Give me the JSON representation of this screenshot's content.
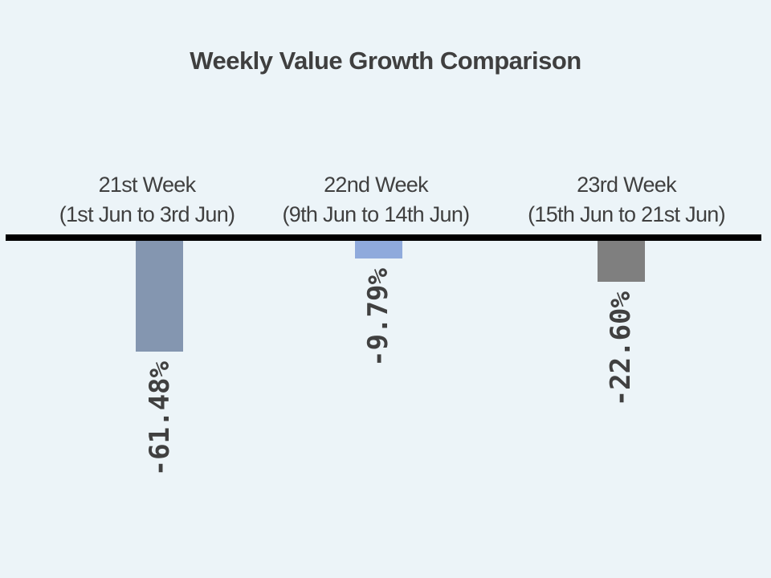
{
  "page": {
    "background_color": "#ECF4F8",
    "text_color": "#404040"
  },
  "chart_data": {
    "type": "bar",
    "title": "Weekly Value Growth Comparison",
    "orientation": "vertical",
    "categories": [
      "21st Week (1st Jun to 3rd Jun)",
      "22nd Week (9th Jun to 14th Jun)",
      "23rd Week (15th Jun to 21st Jun)"
    ],
    "values": [
      -61.48,
      -9.79,
      -22.6
    ],
    "data_labels": [
      "-61.48%",
      "-9.79%",
      "-22.60%"
    ],
    "bar_colors": [
      "#8496B0",
      "#8FAADC",
      "#7F7F7F"
    ],
    "xlabel": "",
    "ylabel": "",
    "ylim": [
      -70,
      0
    ],
    "grid": false,
    "legend": false,
    "baseline_axis": {
      "value": 0,
      "color": "#000000",
      "thickness_px": 8
    },
    "value_label_style": {
      "rotation": "90deg reading bottom-to-top",
      "position": "below bar end"
    },
    "bars": [
      {
        "week": "21st Week",
        "range": "(1st Jun to 3rd Jun)",
        "value": -61.48,
        "value_label": "-61.48%",
        "color": "#8496B0"
      },
      {
        "week": "22nd Week",
        "range": "(9th Jun to 14th Jun)",
        "value": -9.79,
        "value_label": "-9.79%",
        "color": "#8FAADC"
      },
      {
        "week": "23rd Week",
        "range": "(15th Jun to 21st Jun)",
        "value": -22.6,
        "value_label": "-22.60%",
        "color": "#7F7F7F"
      }
    ]
  }
}
